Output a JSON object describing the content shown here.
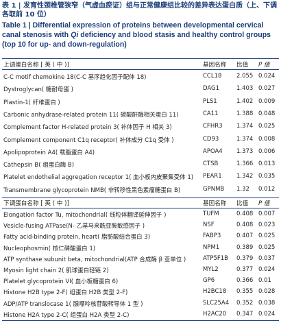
{
  "caption": {
    "cn": "表 1 | 发育性颈椎管狭窄（气虚血瘀证）组与正常健康组比较的差异表达蛋白质（上、下调各取前 10 位）",
    "en_prefix": "Table 1 | Differential expression of proteins between developmental cervical canal stenosis with ",
    "en_italic": "Qi",
    "en_suffix": " deficiency and blood stasis and healthy control groups (top 10 for up- and down-regulation)"
  },
  "upregulated": {
    "header": {
      "name": "上调蛋白名称 [ 英 ( 中 )]",
      "gene": "基因名称",
      "ratio": "比值",
      "p": "P 值"
    },
    "rows": [
      {
        "name": "C-C motif chemokine 18(C-C 基序趋化因子配体 18)",
        "gene": "CCL18",
        "ratio": "2.055",
        "p": "0.024"
      },
      {
        "name": "Dystroglycan( 糖耐母蛋 )",
        "gene": "DAG1",
        "ratio": "1.403",
        "p": "0.027"
      },
      {
        "name": "Plastin-1( 纤维蛋白 )",
        "gene": "PLS1",
        "ratio": "1.402",
        "p": "0.009"
      },
      {
        "name": "Carbonic anhydrase-related protein 11( 碳酸酐酶相关蛋白 11)",
        "gene": "CA11",
        "ratio": "1.388",
        "p": "0.048"
      },
      {
        "name": "Complement factor H-related protein 3( 补体因子 H 相关 3)",
        "gene": "CFHR3",
        "ratio": "1.374",
        "p": "0.025"
      },
      {
        "name": "Complement component C1q receptor( 补体成分 C1q 受体 )",
        "gene": "CD93",
        "ratio": "1.374",
        "p": "0.008"
      },
      {
        "name": "Apolipoprotein A4( 载脂蛋白 A4)",
        "gene": "APOA4",
        "ratio": "1.373",
        "p": "0.006"
      },
      {
        "name": "Cathepsin B( 组蛋白酶 B)",
        "gene": "CTSB",
        "ratio": "1.366",
        "p": "0.013"
      },
      {
        "name": "Platelet endothelial aggregation receptor 1( 血小板内皮聚集受体 1)",
        "gene": "PEAR1",
        "ratio": "1.342",
        "p": "0.035"
      },
      {
        "name": "Transmembrane glycoprotein NMB( 非转移性黑色素瘤糖蛋白 B)",
        "gene": "GPNMB",
        "ratio": "1.32",
        "p": "0.012"
      }
    ]
  },
  "downregulated": {
    "header": {
      "name": "下调蛋白名称 [ 英 ( 中 )]",
      "gene": "基因名称",
      "ratio": "比值",
      "p": "P 值"
    },
    "rows": [
      {
        "name": "Elongation factor Tu, mitochondrial( 线粒体翻译延伸因子 )",
        "gene": "TUFM",
        "ratio": "0.408",
        "p": "0.007"
      },
      {
        "name": "Vesicle-fusing ATPase(N- 乙基马来酰亚胺敏感因子 )",
        "gene": "NSF",
        "ratio": "0.408",
        "p": "0.023"
      },
      {
        "name": "Fatty acid-binding protein, heart( 脂肪酸结合蛋白 3)",
        "gene": "FABP3",
        "ratio": "0.407",
        "p": "0.025"
      },
      {
        "name": "Nucleophosmin( 核仁磷酸蛋白 1)",
        "gene": "NPM1",
        "ratio": "0.389",
        "p": "0.025"
      },
      {
        "name": "ATP synthase subunit beta, mitochondrial(ATP 合成酶 β 亚单位 )",
        "gene": "ATP5F1B",
        "ratio": "0.379",
        "p": "0.037"
      },
      {
        "name": "Myosin light chain 2( 肌球蛋白轻链 2)",
        "gene": "MYL2",
        "ratio": "0.377",
        "p": "0.024"
      },
      {
        "name": "Platelet glycoprotein VI( 血小板糖蛋白 6)",
        "gene": "GP6",
        "ratio": "0.366",
        "p": "0.01"
      },
      {
        "name": "Histone H2B type 2-F( 组蛋白 H2B 类型 2-F)",
        "gene": "H2BC18",
        "ratio": "0.355",
        "p": "0.028"
      },
      {
        "name": "ADP/ATP translocase 1( 腺嘌呤核苷酸转导体 1 型 )",
        "gene": "SLC25A4",
        "ratio": "0.352",
        "p": "0.038"
      },
      {
        "name": "Histone H2A type 2-C( 组蛋白 H2A 类型 2-C)",
        "gene": "H2AC20",
        "ratio": "0.347",
        "p": "0.024"
      }
    ]
  }
}
